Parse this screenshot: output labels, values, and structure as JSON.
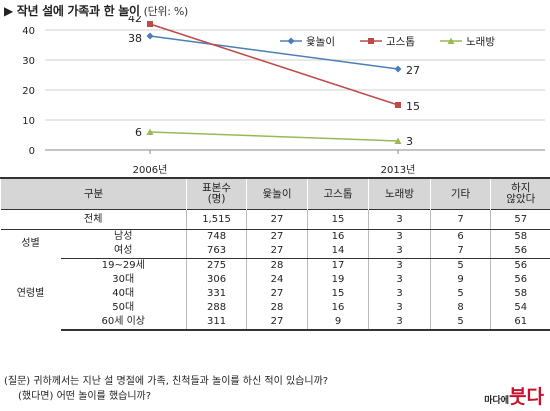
{
  "header": {
    "title": "▶ 작년 설에 가족과 한 놀이",
    "unit": "(단위: %)"
  },
  "chart_data": {
    "type": "line",
    "categories": [
      "2006년",
      "2013년"
    ],
    "ylim": [
      0,
      40
    ],
    "yticks": [
      0,
      10,
      20,
      30,
      40
    ],
    "grid": true,
    "legend_position": "top-right",
    "series": [
      {
        "name": "윷놀이",
        "values": [
          38,
          27
        ],
        "color": "#4a7ebb",
        "marker": "diamond"
      },
      {
        "name": "고스톱",
        "values": [
          42,
          15
        ],
        "color": "#be4b48",
        "marker": "square"
      },
      {
        "name": "노래방",
        "values": [
          6,
          3
        ],
        "color": "#98b954",
        "marker": "triangle"
      }
    ]
  },
  "table": {
    "headers": [
      "구분",
      "표본수\n(명)",
      "윷놀이",
      "고스톱",
      "노래방",
      "기타",
      "하지\n않았다"
    ],
    "total": {
      "label": "전체",
      "values": [
        "1,515",
        "27",
        "15",
        "3",
        "7",
        "57"
      ]
    },
    "groups": [
      {
        "label": "성별",
        "rows": [
          {
            "label": "남성",
            "values": [
              "748",
              "27",
              "16",
              "3",
              "6",
              "58"
            ]
          },
          {
            "label": "여성",
            "values": [
              "763",
              "27",
              "14",
              "3",
              "7",
              "56"
            ]
          }
        ]
      },
      {
        "label": "연령별",
        "rows": [
          {
            "label": "19~29세",
            "values": [
              "275",
              "28",
              "17",
              "3",
              "5",
              "56"
            ]
          },
          {
            "label": "30대",
            "values": [
              "306",
              "24",
              "19",
              "3",
              "9",
              "56"
            ]
          },
          {
            "label": "40대",
            "values": [
              "331",
              "27",
              "15",
              "3",
              "5",
              "58"
            ]
          },
          {
            "label": "50대",
            "values": [
              "288",
              "28",
              "16",
              "3",
              "8",
              "54"
            ]
          },
          {
            "label": "60세 이상",
            "values": [
              "311",
              "27",
              "9",
              "3",
              "5",
              "61"
            ]
          }
        ]
      }
    ]
  },
  "footnote": {
    "q1": "(질문) 귀하께서는 지난 설 명절에 가족, 친척들과 놀이를 하신 적이 있습니까?",
    "q2": "(했다면) 어떤 놀이를 했습니까?"
  },
  "logo": {
    "small": "마다에",
    "big": "붓다"
  }
}
